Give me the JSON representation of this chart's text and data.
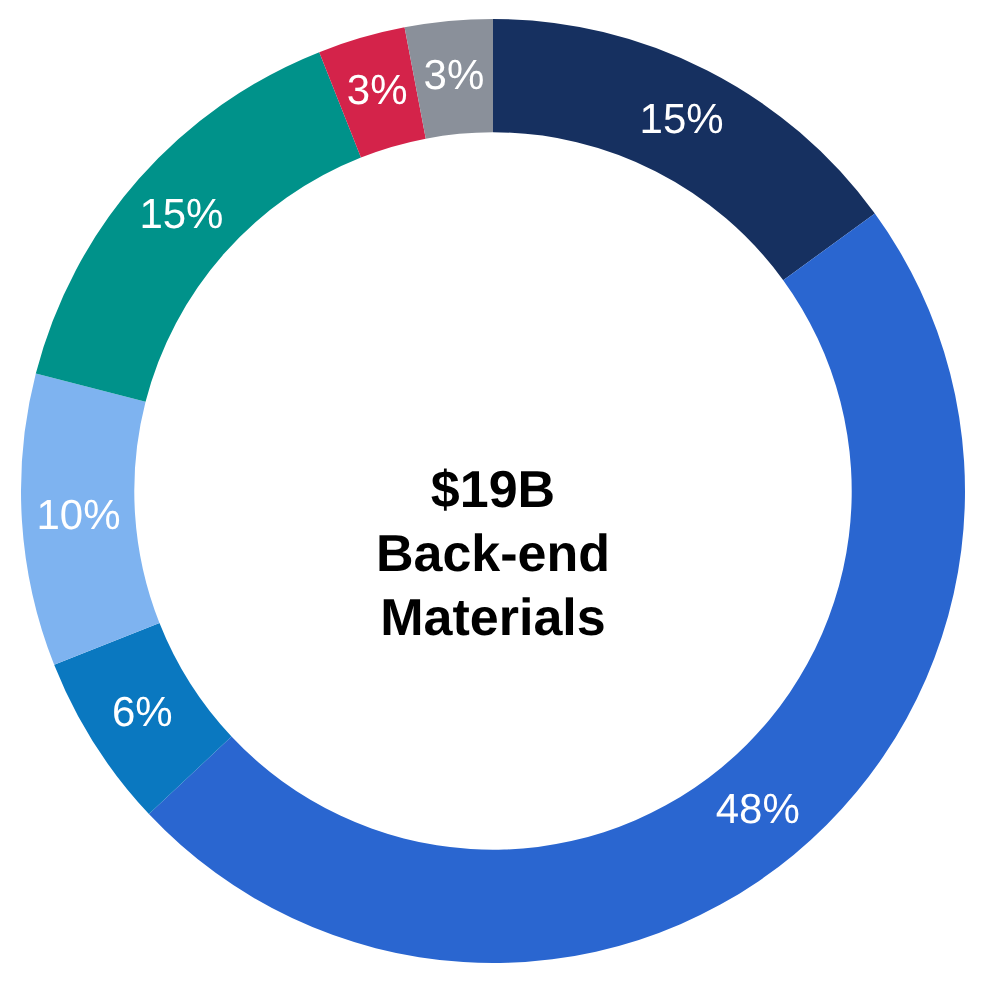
{
  "chart_data": {
    "type": "donut",
    "title": "$19B Back-end Materials",
    "categories": [
      null,
      null,
      null,
      null,
      null,
      null,
      null
    ],
    "values": [
      15,
      48,
      6,
      10,
      15,
      3,
      3
    ],
    "value_labels": [
      "15%",
      "48%",
      "6%",
      "10%",
      "15%",
      "3%",
      "3%"
    ],
    "colors": [
      "#163060",
      "#2a66d0",
      "#0a78c0",
      "#7eb3f0",
      "#00928a",
      "#d4234a",
      "#8a909a"
    ]
  }
}
